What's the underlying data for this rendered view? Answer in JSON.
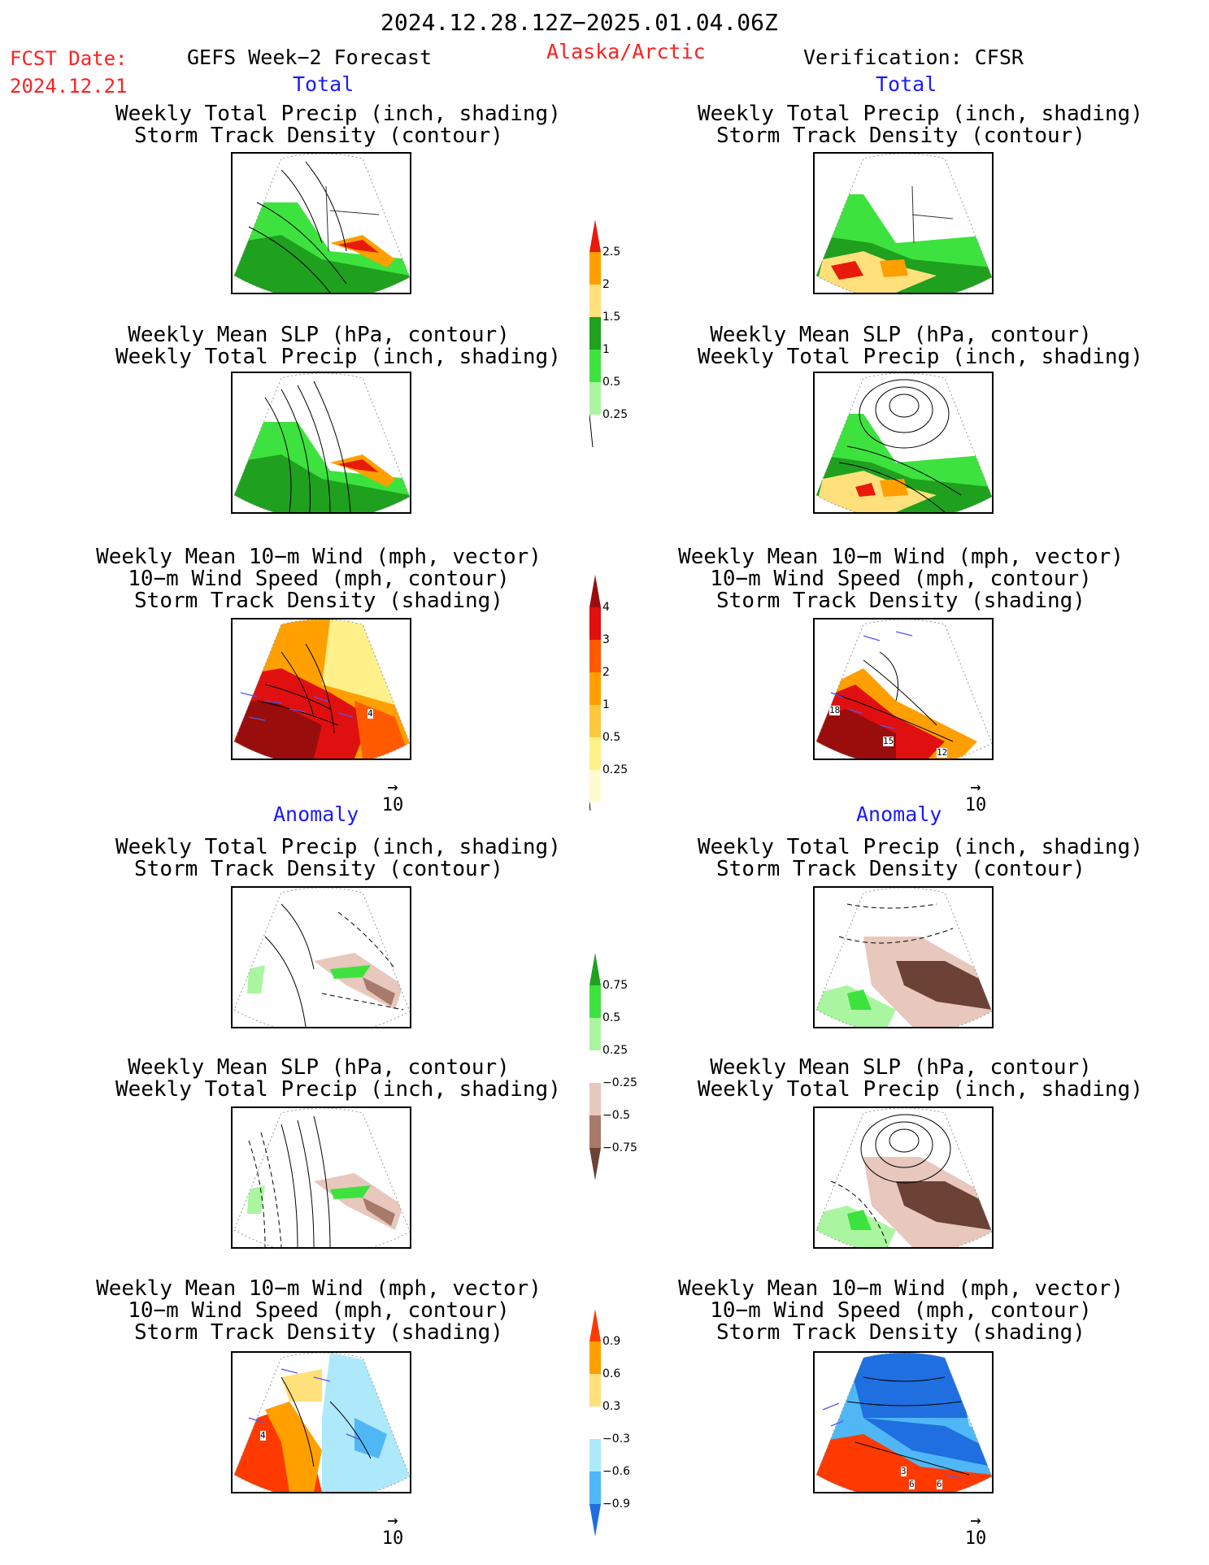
{
  "header": {
    "date_range": "2024.12.28.12Z−2025.01.04.06Z",
    "fcst_label": "FCST Date:",
    "fcst_date": "2024.12.21",
    "model": "GEFS Week−2 Forecast",
    "region": "Alaska/Arctic",
    "verification": "Verification: CFSR"
  },
  "sections": {
    "total": "Total",
    "anomaly": "Anomaly"
  },
  "titles": {
    "precip_storm": [
      "Weekly Total Precip (inch, shading)",
      "Storm Track Density (contour)"
    ],
    "slp_precip": [
      "Weekly Mean SLP (hPa, contour)",
      "Weekly Total Precip (inch, shading)"
    ],
    "wind_storm": [
      "Weekly Mean 10−m Wind (mph, vector)",
      "10−m Wind Speed (mph, contour)",
      "Storm Track Density (shading)"
    ]
  },
  "vector_ref": "10",
  "colorbars": {
    "precip_total": {
      "labels": [
        "2.5",
        "2",
        "1.5",
        "1",
        "0.5",
        "0.25"
      ],
      "colors": [
        "#e81a0a",
        "#ff9f00",
        "#ffe07a",
        "#1fa01f",
        "#3ee23e",
        "#aaf5a0"
      ]
    },
    "storm_total": {
      "labels": [
        "4",
        "3",
        "2",
        "1",
        "0.5",
        "0.25"
      ],
      "colors": [
        "#9a0d0d",
        "#e01010",
        "#ff5a00",
        "#ffa000",
        "#ffc840",
        "#fff08a",
        "#fffbd0"
      ]
    },
    "precip_anom": {
      "labels": [
        "0.75",
        "0.5",
        "0.25",
        "−0.25",
        "−0.5",
        "−0.75"
      ],
      "colors": [
        "#1fa01f",
        "#3ee23e",
        "#aaf5a0",
        "#ffffff",
        "#e8c7bd",
        "#a77a6b",
        "#6b4235"
      ]
    },
    "storm_anom": {
      "labels": [
        "0.9",
        "0.6",
        "0.3",
        "−0.3",
        "−0.6",
        "−0.9"
      ],
      "colors": [
        "#ff3a00",
        "#ff9f00",
        "#ffe07a",
        "#ffffff",
        "#aee8fb",
        "#4fb7f5",
        "#1f6fe0"
      ]
    }
  },
  "panel_labels": {
    "gefs_wind_total": [
      "4"
    ],
    "cfsr_wind_total": [
      "18",
      "15",
      "12"
    ],
    "gefs_wind_anom": [
      "4"
    ],
    "cfsr_wind_anom": [
      "3",
      "6",
      "6"
    ]
  }
}
